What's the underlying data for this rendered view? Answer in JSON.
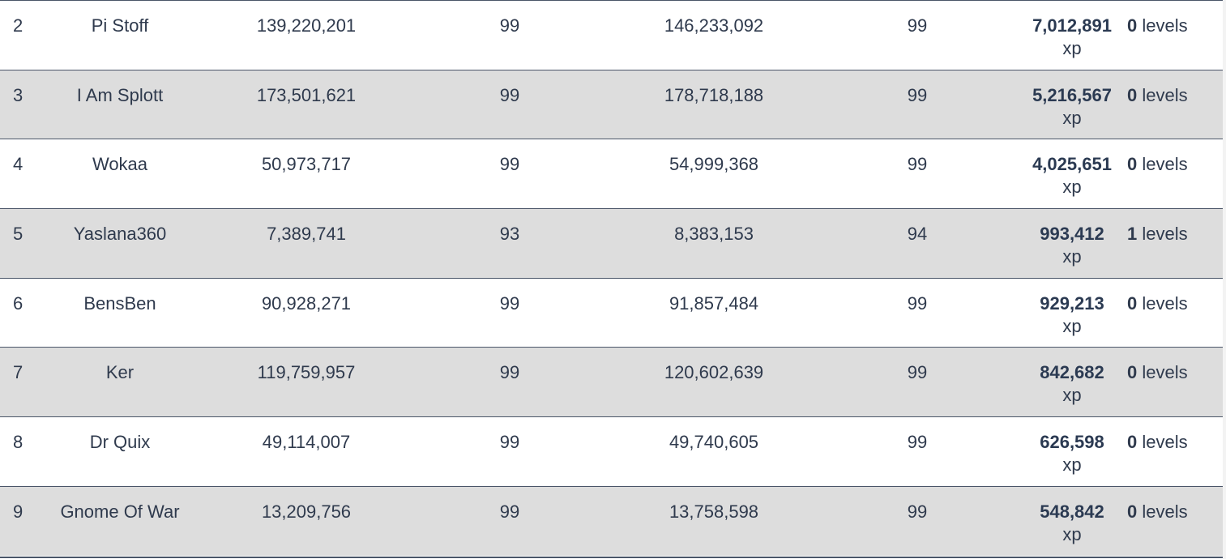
{
  "rows": [
    {
      "rank": "2",
      "name": "Pi Stoff",
      "start_xp": "139,220,201",
      "start_level": "99",
      "end_xp": "146,233,092",
      "end_level": "99",
      "gain_xp": "7,012,891",
      "gain_unit": "xp",
      "levels_gained": "0",
      "levels_unit": "levels"
    },
    {
      "rank": "3",
      "name": "I Am Splott",
      "start_xp": "173,501,621",
      "start_level": "99",
      "end_xp": "178,718,188",
      "end_level": "99",
      "gain_xp": "5,216,567",
      "gain_unit": "xp",
      "levels_gained": "0",
      "levels_unit": "levels"
    },
    {
      "rank": "4",
      "name": "Wokaa",
      "start_xp": "50,973,717",
      "start_level": "99",
      "end_xp": "54,999,368",
      "end_level": "99",
      "gain_xp": "4,025,651",
      "gain_unit": "xp",
      "levels_gained": "0",
      "levels_unit": "levels"
    },
    {
      "rank": "5",
      "name": "Yaslana360",
      "start_xp": "7,389,741",
      "start_level": "93",
      "end_xp": "8,383,153",
      "end_level": "94",
      "gain_xp": "993,412",
      "gain_unit": "xp",
      "levels_gained": "1",
      "levels_unit": "levels"
    },
    {
      "rank": "6",
      "name": "BensBen",
      "start_xp": "90,928,271",
      "start_level": "99",
      "end_xp": "91,857,484",
      "end_level": "99",
      "gain_xp": "929,213",
      "gain_unit": "xp",
      "levels_gained": "0",
      "levels_unit": "levels"
    },
    {
      "rank": "7",
      "name": "Ker",
      "start_xp": "119,759,957",
      "start_level": "99",
      "end_xp": "120,602,639",
      "end_level": "99",
      "gain_xp": "842,682",
      "gain_unit": "xp",
      "levels_gained": "0",
      "levels_unit": "levels"
    },
    {
      "rank": "8",
      "name": "Dr Quix",
      "start_xp": "49,114,007",
      "start_level": "99",
      "end_xp": "49,740,605",
      "end_level": "99",
      "gain_xp": "626,598",
      "gain_unit": "xp",
      "levels_gained": "0",
      "levels_unit": "levels"
    },
    {
      "rank": "9",
      "name": "Gnome Of War",
      "start_xp": "13,209,756",
      "start_level": "99",
      "end_xp": "13,758,598",
      "end_level": "99",
      "gain_xp": "548,842",
      "gain_unit": "xp",
      "levels_gained": "0",
      "levels_unit": "levels"
    }
  ],
  "colors": {
    "row_alt": "#dddddd",
    "row_base": "#ffffff",
    "text": "#2f3a4d",
    "divider": "#4a5568"
  }
}
